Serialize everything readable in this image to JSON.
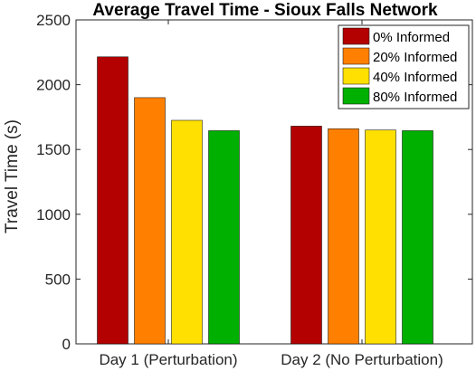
{
  "chart_data": {
    "type": "bar",
    "title": "Average Travel Time - Sioux Falls Network",
    "ylabel": "Travel Time (s)",
    "xlabel": "",
    "categories": [
      "Day 1 (Perturbation)",
      "Day 2 (No Perturbation)"
    ],
    "ylim": [
      0,
      2500
    ],
    "yticks": [
      0,
      500,
      1000,
      1500,
      2000,
      2500
    ],
    "grid": false,
    "legend_position": "top-right",
    "series": [
      {
        "name": "0% Informed",
        "color": "#b30000",
        "values": [
          2215,
          1680
        ]
      },
      {
        "name": "20% Informed",
        "color": "#ff8000",
        "values": [
          1900,
          1660
        ]
      },
      {
        "name": "40% Informed",
        "color": "#ffe000",
        "values": [
          1725,
          1650
        ]
      },
      {
        "name": "80% Informed",
        "color": "#00b000",
        "values": [
          1645,
          1645
        ]
      }
    ]
  }
}
